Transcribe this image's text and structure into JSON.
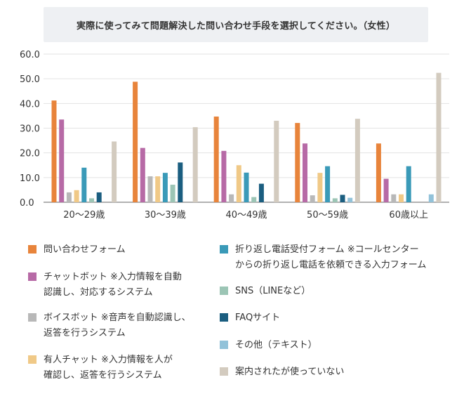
{
  "chart_data": {
    "type": "bar",
    "title": "実際に使ってみて問題解決した問い合わせ手段を選択してください。（女性）",
    "xlabel": "",
    "ylabel": "",
    "ylim": [
      0,
      60
    ],
    "yticks": [
      "0.0",
      "10.0",
      "20.0",
      "30.0",
      "40.0",
      "50.0",
      "60.0"
    ],
    "grid": true,
    "legend_position": "bottom",
    "categories": [
      "20〜29歳",
      "30〜39歳",
      "40〜49歳",
      "50〜59歳",
      "60歳以上"
    ],
    "series": [
      {
        "name": "問い合わせフォーム",
        "color": "#e8843b",
        "values": [
          41.2,
          48.8,
          34.7,
          32.1,
          23.8
        ]
      },
      {
        "name": "チャットボット ※入力情報を自動\n認識し、対応するシステム",
        "color": "#b76aa6",
        "values": [
          33.5,
          22.0,
          20.8,
          23.8,
          9.5
        ]
      },
      {
        "name": "ボイスボット ※音声を自動認識し、\n返答を行うシステム",
        "color": "#b8b8b8",
        "values": [
          4.0,
          10.5,
          3.2,
          2.8,
          3.2
        ]
      },
      {
        "name": "有人チャット ※入力情報を人が\n確認し、返答を行うシステム",
        "color": "#f0c987",
        "values": [
          4.9,
          10.5,
          15.0,
          11.9,
          3.2
        ]
      },
      {
        "name": "折り返し電話受付フォーム ※コールセンター\nからの折り返し電話を依頼できる入力フォーム",
        "color": "#3a9ab8",
        "values": [
          14.0,
          11.9,
          12.0,
          14.6,
          14.6
        ]
      },
      {
        "name": "SNS（LINEなど）",
        "color": "#9cc5b5",
        "values": [
          1.6,
          7.1,
          2.1,
          1.6,
          0.0
        ]
      },
      {
        "name": "FAQサイト",
        "color": "#1b5e80",
        "values": [
          4.0,
          16.1,
          7.5,
          3.0,
          0.0
        ]
      },
      {
        "name": "その他（テキスト）",
        "color": "#92c2d9",
        "values": [
          0.0,
          0.0,
          0.0,
          1.8,
          3.2
        ]
      },
      {
        "name": "案内されたが使っていない",
        "color": "#d3cbbf",
        "values": [
          24.6,
          30.4,
          33.0,
          33.8,
          52.4
        ]
      }
    ]
  }
}
